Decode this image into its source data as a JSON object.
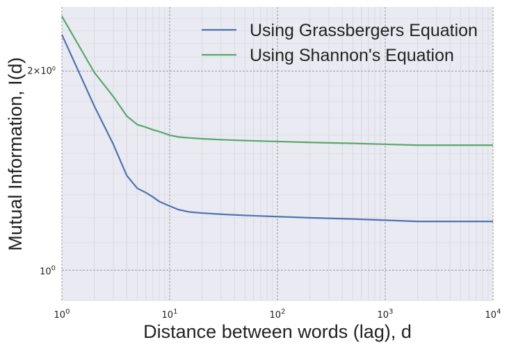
{
  "chart_data": {
    "type": "line",
    "title": "",
    "xlabel": "Distance between words (lag), d",
    "ylabel": "Mutual Information, I(d)",
    "xscale": "log",
    "yscale": "log",
    "xlim": [
      1,
      10000
    ],
    "ylim": [
      0.9,
      2.5
    ],
    "x_ticks": [
      {
        "value": 1,
        "base": "10",
        "exp": "0"
      },
      {
        "value": 10,
        "base": "10",
        "exp": "1"
      },
      {
        "value": 100,
        "base": "10",
        "exp": "2"
      },
      {
        "value": 1000,
        "base": "10",
        "exp": "3"
      },
      {
        "value": 10000,
        "base": "10",
        "exp": "4"
      }
    ],
    "y_ticks": [
      {
        "value": 1,
        "base": "10",
        "exp": "0",
        "mult": ""
      },
      {
        "value": 2,
        "base": "10",
        "exp": "0",
        "mult": "2×"
      }
    ],
    "grid": true,
    "legend_position": "top-right",
    "x": [
      1,
      2,
      3,
      4,
      5,
      6,
      7,
      8,
      10,
      12,
      15,
      20,
      30,
      50,
      100,
      200,
      500,
      1000,
      2000,
      5000,
      10000
    ],
    "series": [
      {
        "name": "Using Grassbergers Equation",
        "color": "#4c72b0",
        "values": [
          2.27,
          1.77,
          1.55,
          1.39,
          1.33,
          1.31,
          1.29,
          1.27,
          1.25,
          1.235,
          1.225,
          1.22,
          1.215,
          1.21,
          1.205,
          1.2,
          1.195,
          1.19,
          1.185,
          1.185,
          1.185
        ]
      },
      {
        "name": "Using Shannon's Equation",
        "color": "#55a868",
        "values": [
          2.42,
          1.99,
          1.83,
          1.71,
          1.66,
          1.645,
          1.63,
          1.62,
          1.6,
          1.59,
          1.585,
          1.58,
          1.575,
          1.57,
          1.565,
          1.56,
          1.555,
          1.55,
          1.545,
          1.545,
          1.545
        ]
      }
    ]
  }
}
